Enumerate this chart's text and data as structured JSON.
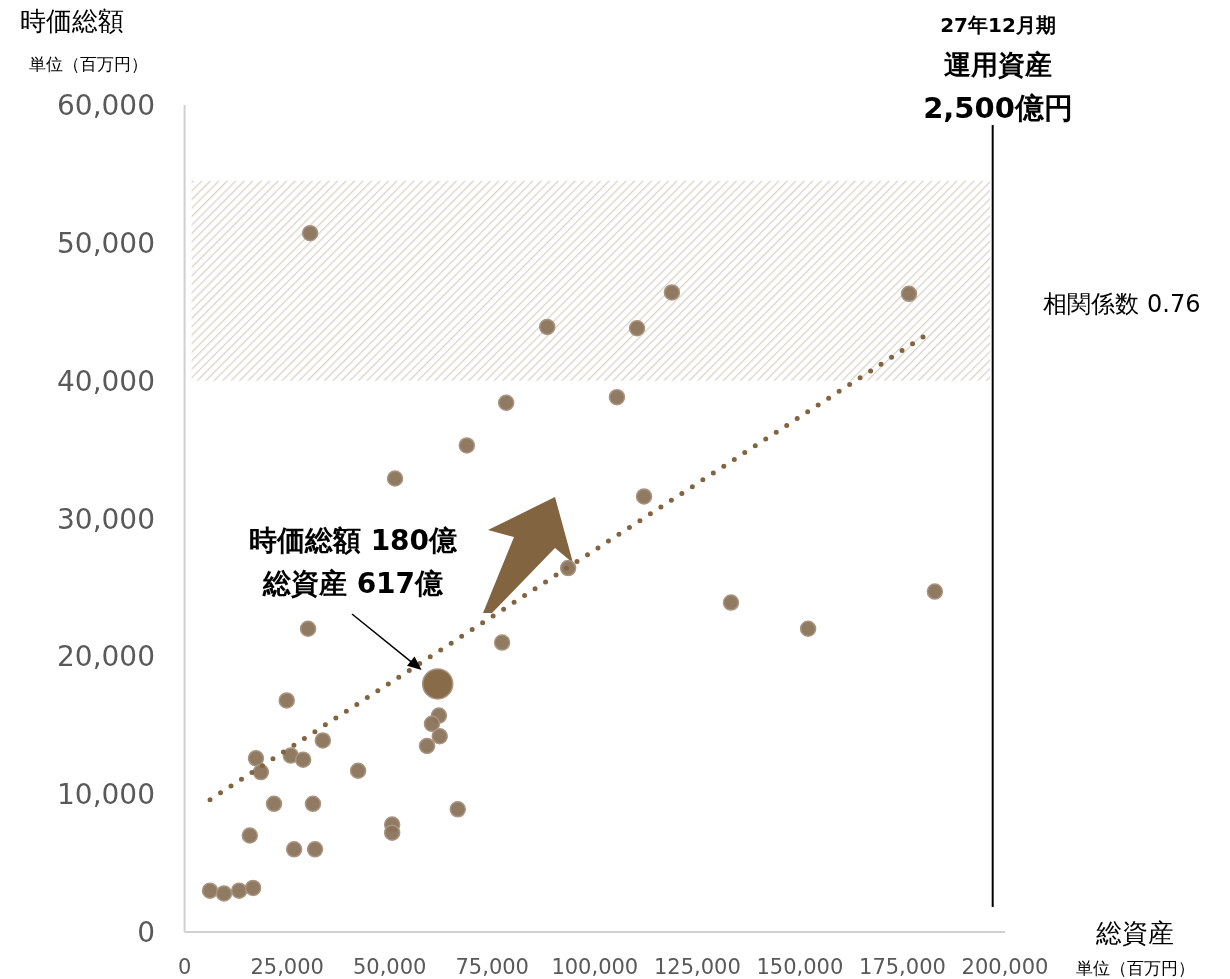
{
  "chart_data": {
    "type": "scatter",
    "ylabel": "時価総額",
    "xlabel": "総資産",
    "xlim": [
      0,
      200000
    ],
    "ylim": [
      0,
      60000
    ],
    "xticks": [
      0,
      {
        "value": 25000,
        "label": "25,000"
      },
      {
        "value": 50000,
        "label": "50,000"
      },
      {
        "value": 75000,
        "label": "75,000"
      },
      {
        "value": 100000,
        "label": "100,000"
      },
      {
        "value": 125000,
        "label": "125,000"
      },
      {
        "value": 150000,
        "label": "150,000"
      },
      {
        "value": 175000,
        "label": "175,000"
      },
      {
        "value": 200000,
        "label": "200,000"
      }
    ],
    "yticks": [
      0,
      {
        "value": 10000,
        "label": "10,000"
      },
      {
        "value": 20000,
        "label": "20,000"
      },
      {
        "value": 30000,
        "label": "30,000"
      },
      {
        "value": 40000,
        "label": "40,000"
      },
      {
        "value": 50000,
        "label": "50,000"
      },
      {
        "value": 60000,
        "label": "60,000"
      }
    ],
    "grid": false,
    "series": [
      {
        "marker": "circle",
        "color": "#8b735a",
        "x": [
          6200,
          9600,
          13300,
          16700,
          15900,
          26700,
          31800,
          21800,
          31300,
          50600,
          50600,
          66600,
          42300,
          17400,
          18600,
          25900,
          28900,
          33700,
          24900,
          30100,
          62000,
          60300,
          62200,
          59100,
          30600,
          88400,
          110300,
          118800,
          78400,
          105400,
          68800,
          51300,
          112000,
          93500,
          176600,
          133200,
          152000,
          182900,
          77400
        ],
        "values": [
          3000,
          2800,
          3000,
          3200,
          7000,
          6000,
          6000,
          9300,
          9300,
          7800,
          7200,
          8900,
          11700,
          12600,
          11600,
          12800,
          12500,
          13900,
          16800,
          22000,
          15700,
          15100,
          14200,
          13500,
          50700,
          43900,
          43800,
          46400,
          38400,
          38800,
          35300,
          32900,
          31600,
          26400,
          46300,
          23900,
          22000,
          24700,
          21000
        ]
      },
      {
        "type": "line",
        "color": "#826440",
        "line_style": "dotted",
        "x": [
          6200,
          181700
        ],
        "values": [
          9600,
          43500
        ]
      },
      {
        "type": "bubble",
        "marker": "circle",
        "color": "#826440",
        "x": [
          61700
        ],
        "values": [
          18000
        ],
        "sizes": [
          1
        ]
      }
    ],
    "bands": [
      {
        "axis": "y",
        "from": 40000,
        "to": 54500,
        "color": "#d9d2c8"
      }
    ],
    "ref_lines": [
      {
        "axis": "x",
        "value": 197000,
        "label": "27年12月期",
        "color": "#000000"
      }
    ],
    "annotations": [
      "単位（百万円）",
      "単位（百万円）",
      "相関係数 0.76",
      "運用資産",
      "2,500億円",
      "時価総額  180億",
      {
        "text": "総資産  617億",
        "x": 61700,
        "y": 18000
      }
    ]
  }
}
